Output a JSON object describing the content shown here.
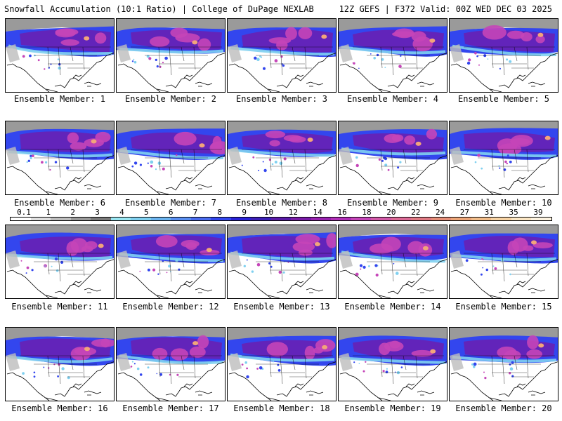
{
  "header": {
    "left_title": "Snowfall Accumulation (10:1 Ratio) | College of DuPage NEXLAB",
    "right_title": "12Z GEFS | F372 Valid: 00Z WED DEC 03 2025"
  },
  "legend": {
    "ticks": [
      "0.1",
      "1",
      "2",
      "3",
      "4",
      "5",
      "6",
      "7",
      "8",
      "9",
      "10",
      "12",
      "14",
      "16",
      "18",
      "20",
      "22",
      "24",
      "27",
      "31",
      "35",
      "39"
    ],
    "colors": [
      "#ffffff",
      "#e0e0e0",
      "#bdbdbd",
      "#9a9a9a",
      "#7a7a7a",
      "#99e6f2",
      "#7fd0f0",
      "#6bb4f0",
      "#5a8ff2",
      "#4a6cf0",
      "#3346ee",
      "#2a22d8",
      "#3d1fb8",
      "#5a1aa8",
      "#7a1aa8",
      "#9a22b0",
      "#b22fb8",
      "#c545b8",
      "#d35aa8",
      "#dc6a96",
      "#e07a84",
      "#e68f7a",
      "#eda679",
      "#f2bd8a",
      "#f7d3a4",
      "#fbe6c4",
      "#fdf3e0"
    ]
  },
  "panels": [
    {
      "label": "Ensemble Member: 1"
    },
    {
      "label": "Ensemble Member: 2"
    },
    {
      "label": "Ensemble Member: 3"
    },
    {
      "label": "Ensemble Member: 4"
    },
    {
      "label": "Ensemble Member: 5"
    },
    {
      "label": "Ensemble Member: 6"
    },
    {
      "label": "Ensemble Member: 7"
    },
    {
      "label": "Ensemble Member: 8"
    },
    {
      "label": "Ensemble Member: 9"
    },
    {
      "label": "Ensemble Member: 10"
    },
    {
      "label": "Ensemble Member: 11"
    },
    {
      "label": "Ensemble Member: 12"
    },
    {
      "label": "Ensemble Member: 13"
    },
    {
      "label": "Ensemble Member: 14"
    },
    {
      "label": "Ensemble Member: 15"
    },
    {
      "label": "Ensemble Member: 16"
    },
    {
      "label": "Ensemble Member: 17"
    },
    {
      "label": "Ensemble Member: 18"
    },
    {
      "label": "Ensemble Member: 19"
    },
    {
      "label": "Ensemble Member: 20"
    }
  ]
}
